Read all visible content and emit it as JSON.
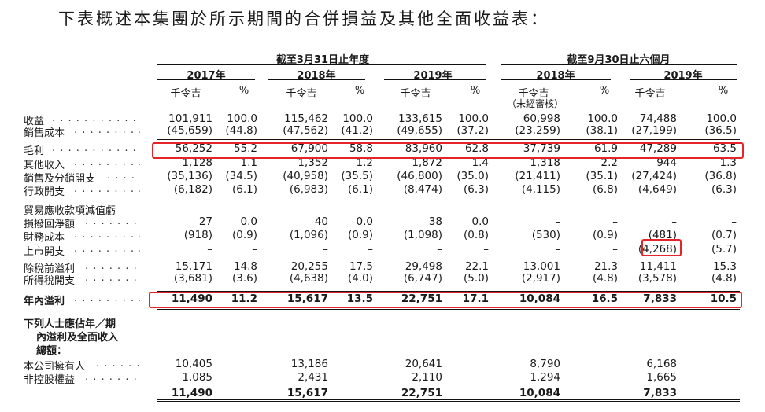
{
  "intro": "下表概述本集團於所示期間的合併損益及其他全面收益表：",
  "header": {
    "group_annual": "截至3月31日止年度",
    "group_interim": "截至9月30日止六個月",
    "years": [
      "2017年",
      "2018年",
      "2019年",
      "2018年",
      "2019年"
    ],
    "unit_label": "千令吉",
    "percent_label": "%",
    "unaudited_label": "（未經審核）"
  },
  "rows": [
    {
      "label": "收益",
      "values": [
        "101,911",
        "100.0",
        "115,462",
        "100.0",
        "133,615",
        "100.0",
        "60,998",
        "100.0",
        "74,488",
        "100.0"
      ]
    },
    {
      "label": "銷售成本",
      "values": [
        "(45,659)",
        "(44.8)",
        "(47,562)",
        "(41.2)",
        "(49,655)",
        "(37.2)",
        "(23,259)",
        "(38.1)",
        "(27,199)",
        "(36.5)"
      ]
    },
    {
      "label": "毛利",
      "values": [
        "56,252",
        "55.2",
        "67,900",
        "58.8",
        "83,960",
        "62.8",
        "37,739",
        "61.9",
        "47,289",
        "63.5"
      ]
    },
    {
      "label": "其他收入",
      "values": [
        "1,128",
        "1.1",
        "1,352",
        "1.2",
        "1,872",
        "1.4",
        "1,318",
        "2.2",
        "944",
        "1.3"
      ]
    },
    {
      "label": "銷售及分銷開支",
      "values": [
        "(35,136)",
        "(34.5)",
        "(40,958)",
        "(35.5)",
        "(46,800)",
        "(35.0)",
        "(21,411)",
        "(35.1)",
        "(27,424)",
        "(36.8)"
      ]
    },
    {
      "label": "行政開支",
      "values": [
        "(6,182)",
        "(6.1)",
        "(6,983)",
        "(6.1)",
        "(8,474)",
        "(6.3)",
        "(4,115)",
        "(6.8)",
        "(4,649)",
        "(6.3)"
      ]
    },
    {
      "label": "貿易應收款項減值虧",
      "values": [
        "",
        "",
        "",
        "",
        "",
        "",
        "",
        "",
        "",
        ""
      ]
    },
    {
      "label": "損撥回淨額",
      "values": [
        "27",
        "0.0",
        "40",
        "0.0",
        "38",
        "0.0",
        "–",
        "–",
        "–",
        "–"
      ]
    },
    {
      "label": "財務成本",
      "values": [
        "(918)",
        "(0.9)",
        "(1,096)",
        "(0.9)",
        "(1,098)",
        "(0.8)",
        "(530)",
        "(0.9)",
        "(481)",
        "(0.7)"
      ]
    },
    {
      "label": "上市開支",
      "values": [
        "–",
        "–",
        "–",
        "–",
        "–",
        "–",
        "–",
        "–",
        "(4,268)",
        "(5.7)"
      ]
    },
    {
      "label": "除稅前溢利",
      "values": [
        "15,171",
        "14.8",
        "20,255",
        "17.5",
        "29,498",
        "22.1",
        "13,001",
        "21.3",
        "11,411",
        "15.3"
      ]
    },
    {
      "label": "所得稅開支",
      "values": [
        "(3,681)",
        "(3.6)",
        "(4,638)",
        "(4.0)",
        "(6,747)",
        "(5.0)",
        "(2,917)",
        "(4.8)",
        "(3,578)",
        "(4.8)"
      ]
    },
    {
      "label": "年內溢利",
      "values": [
        "11,490",
        "11.2",
        "15,617",
        "13.5",
        "22,751",
        "17.1",
        "10,084",
        "16.5",
        "7,833",
        "10.5"
      ]
    }
  ],
  "attribution_label": [
    "下列人士應佔年／期",
    "內溢利及全面收入",
    "總額："
  ],
  "attribution_rows": [
    {
      "label": "本公司擁有人",
      "values": [
        "10,405",
        "13,186",
        "20,641",
        "8,790",
        "6,168"
      ]
    },
    {
      "label": "非控股權益",
      "values": [
        "1,085",
        "2,431",
        "2,110",
        "1,294",
        "1,665"
      ]
    }
  ],
  "attribution_total": [
    "11,490",
    "15,617",
    "22,751",
    "10,084",
    "7,833"
  ],
  "highlight_color": "#e3252a"
}
